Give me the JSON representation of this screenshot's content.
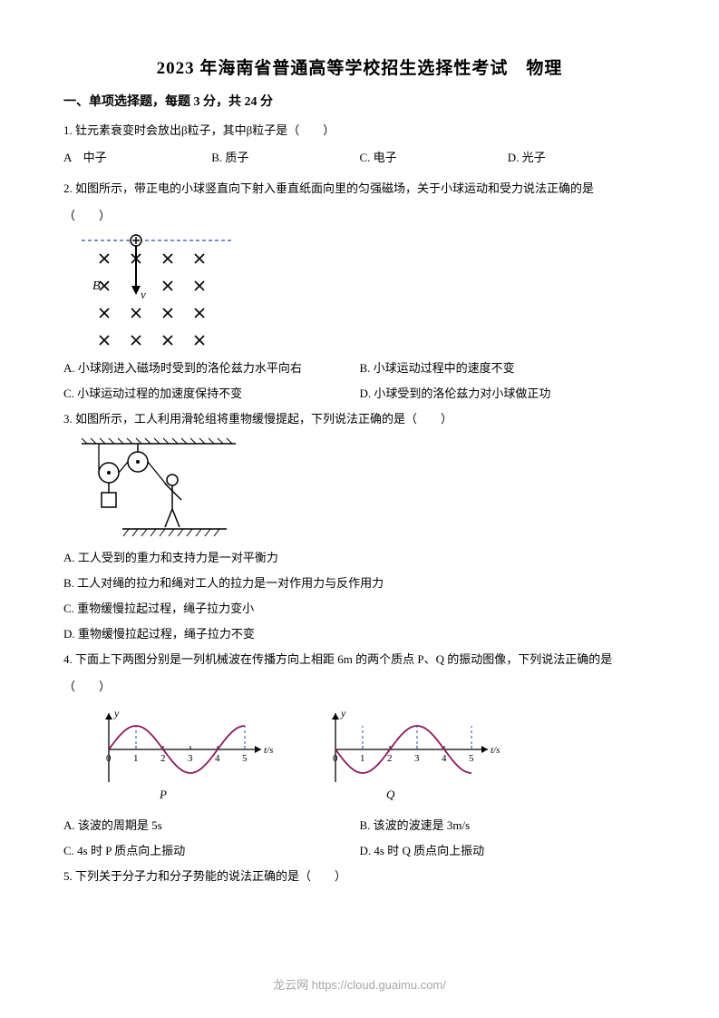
{
  "title": "2023 年海南省普通高等学校招生选择性考试　物理",
  "section1": "一、单项选择题，每题 3 分，共 24 分",
  "q1": {
    "text": "1. 钍元素衰变时会放出β粒子，其中β粒子是（　　）",
    "A": "A　中子",
    "B": "B. 质子",
    "C": "C. 电子",
    "D": "D. 光子"
  },
  "q2": {
    "text": "2. 如图所示，带正电的小球竖直向下射入垂直纸面向里的匀强磁场，关于小球运动和受力说法正确的是",
    "blank": "（　　）",
    "A": "A. 小球刚进入磁场时受到的洛伦兹力水平向右",
    "B": "B. 小球运动过程中的速度不变",
    "C": "C. 小球运动过程的加速度保持不变",
    "D": "D. 小球受到的洛伦兹力对小球做正功",
    "fig": {
      "b_label": "B",
      "v_label": "v",
      "x_color": "#000000",
      "dash_color": "#2050a0",
      "rows": 4,
      "cols": 4
    }
  },
  "q3": {
    "text": "3. 如图所示，工人利用滑轮组将重物缓慢提起，下列说法正确的是（　　）",
    "A": "A. 工人受到的重力和支持力是一对平衡力",
    "B": "B. 工人对绳的拉力和绳对工人的拉力是一对作用力与反作用力",
    "C": "C. 重物缓慢拉起过程，绳子拉力变小",
    "D": "D. 重物缓慢拉起过程，绳子拉力不变"
  },
  "q4": {
    "text": "4. 下面上下两图分别是一列机械波在传播方向上相距 6m 的两个质点 P、Q 的振动图像，下列说法正确的是",
    "blank": "（　　）",
    "A": "A. 该波的周期是 5s",
    "B": "B. 该波的波速是 3m/s",
    "C": "C. 4s 时 P 质点向上振动",
    "D": "D. 4s 时 Q 质点向上振动",
    "chartP": {
      "label": "P",
      "ylabel": "y",
      "xlabel": "t/s",
      "ticks": [
        "0",
        "1",
        "2",
        "3",
        "4",
        "5"
      ],
      "curve_color": "#8b1a5e",
      "axis_color": "#000000",
      "dash_color": "#2050a0",
      "phase": 0
    },
    "chartQ": {
      "label": "Q",
      "ylabel": "y",
      "xlabel": "t/s",
      "ticks": [
        "0",
        "1",
        "2",
        "3",
        "4",
        "5"
      ],
      "curve_color": "#8b1a5e",
      "axis_color": "#000000",
      "dash_color": "#2050a0",
      "phase": 3.1416
    }
  },
  "q5": {
    "text": "5. 下列关于分子力和分子势能的说法正确的是（　　）"
  },
  "footer": "龙云网 https://cloud.guaimu.com/"
}
